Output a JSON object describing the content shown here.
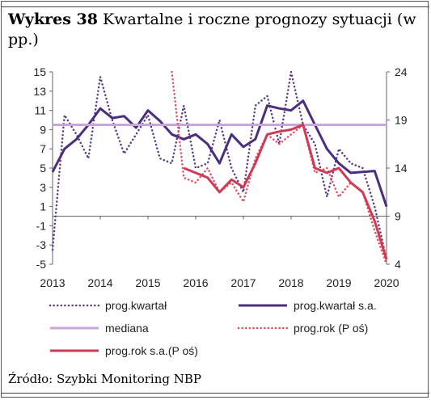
{
  "header": {
    "label": "Wykres 38",
    "title": "Kwartalne i roczne prognozy sytuacji (w pp.)"
  },
  "footer": {
    "source": "Źródło: Szybki Monitoring NBP"
  },
  "chart_data": {
    "type": "line",
    "x_ticks": [
      "2013",
      "2014",
      "2015",
      "2016",
      "2017",
      "2018",
      "2019",
      "2020"
    ],
    "y_left": {
      "ylim": [
        -5,
        15
      ],
      "ticks": [
        "15",
        "13",
        "11",
        "9",
        "7",
        "5",
        "3",
        "1",
        "-1",
        "-3",
        "-5"
      ]
    },
    "y_right": {
      "ylim": [
        4,
        24
      ],
      "ticks": [
        "24",
        "19",
        "14",
        "9",
        "4"
      ]
    },
    "grid": false,
    "legend_position": "bottom",
    "series": [
      {
        "name": "prog.kwartał",
        "axis": "left",
        "style": "dotted",
        "color": "#5b3a87",
        "x": [
          2013.0,
          2013.25,
          2013.5,
          2013.75,
          2014.0,
          2014.25,
          2014.5,
          2014.75,
          2015.0,
          2015.25,
          2015.5,
          2015.75,
          2016.0,
          2016.25,
          2016.5,
          2016.75,
          2017.0,
          2017.25,
          2017.5,
          2017.75,
          2018.0,
          2018.25,
          2018.5,
          2018.75,
          2019.0,
          2019.25,
          2019.5,
          2019.75,
          2020.0
        ],
        "values": [
          -3.5,
          10.5,
          8.5,
          6.0,
          14.5,
          10.0,
          6.5,
          8.5,
          10.5,
          6.0,
          5.5,
          11.5,
          5.0,
          5.5,
          10.0,
          5.0,
          2.5,
          11.5,
          12.5,
          7.5,
          15.0,
          9.5,
          7.5,
          2.0,
          7.0,
          5.5,
          5.0,
          1.0,
          -4.5
        ]
      },
      {
        "name": "prog.kwartał s.a.",
        "axis": "left",
        "style": "solid",
        "color": "#4b2e7e",
        "x": [
          2013.0,
          2013.25,
          2013.5,
          2013.75,
          2014.0,
          2014.25,
          2014.5,
          2014.75,
          2015.0,
          2015.25,
          2015.5,
          2015.75,
          2016.0,
          2016.25,
          2016.5,
          2016.75,
          2017.0,
          2017.25,
          2017.5,
          2017.75,
          2018.0,
          2018.25,
          2018.5,
          2018.75,
          2019.0,
          2019.25,
          2019.5,
          2019.75,
          2020.0
        ],
        "values": [
          4.6,
          7.0,
          8.0,
          9.5,
          11.2,
          10.2,
          10.4,
          9.2,
          11.0,
          9.9,
          8.5,
          8.0,
          8.5,
          7.5,
          5.5,
          8.5,
          7.2,
          8.0,
          11.5,
          11.2,
          11.0,
          12.0,
          9.5,
          7.0,
          5.5,
          4.5,
          4.6,
          4.7,
          1.0
        ]
      },
      {
        "name": "mediana",
        "axis": "right",
        "style": "solid",
        "color": "#c9a5df",
        "x": [
          2013.0,
          2020.0
        ],
        "values": [
          18.5,
          18.5
        ]
      },
      {
        "name": "prog.rok (P oś)",
        "axis": "right",
        "style": "dotted",
        "color": "#e04f60",
        "x": [
          2015.5,
          2015.75,
          2016.0,
          2016.25,
          2016.5,
          2016.75,
          2017.0,
          2017.25,
          2017.5,
          2017.75,
          2018.0,
          2018.25,
          2018.5,
          2018.75,
          2019.0,
          2019.25,
          2019.5,
          2019.75,
          2020.0
        ],
        "values": [
          24.0,
          13.0,
          12.5,
          14.0,
          11.5,
          12.5,
          10.5,
          15.0,
          17.5,
          16.5,
          17.5,
          18.5,
          13.5,
          14.0,
          11.0,
          12.5,
          11.5,
          7.5,
          4.0
        ]
      },
      {
        "name": "prog.rok s.a.(P oś)",
        "axis": "right",
        "style": "solid",
        "color": "#d03a55",
        "x": [
          2015.75,
          2016.0,
          2016.25,
          2016.5,
          2016.75,
          2017.0,
          2017.25,
          2017.5,
          2017.75,
          2018.0,
          2018.25,
          2018.5,
          2018.75,
          2019.0,
          2019.25,
          2019.5,
          2019.75,
          2020.0
        ],
        "values": [
          14.0,
          13.5,
          13.0,
          11.5,
          12.8,
          12.0,
          14.5,
          17.5,
          17.8,
          18.0,
          18.5,
          14.0,
          13.5,
          14.0,
          12.5,
          11.5,
          8.5,
          4.5
        ]
      }
    ]
  }
}
